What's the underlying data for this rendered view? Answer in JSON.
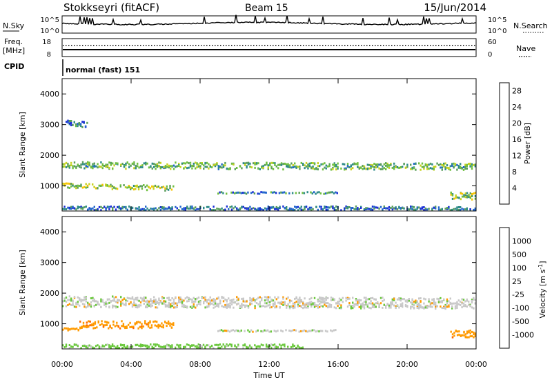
{
  "header": {
    "station": "Stokkseyri (fitACF)",
    "beam": "Beam 15",
    "date": "15/Jun/2014"
  },
  "status_panels": {
    "left_labels": {
      "nsky": "N.Sky",
      "freq": "Freq.",
      "freq_unit": "[MHz]",
      "cpid": "CPID"
    },
    "right_labels": {
      "nsearch": "N.Search",
      "nave": "Nave"
    },
    "nsky_ticks": [
      "10^5",
      "10^0"
    ],
    "nsearch_ticks": [
      "10^5",
      "10^0"
    ],
    "freq_ticks": [
      "18",
      "8"
    ],
    "nave_ticks": [
      "60",
      "0"
    ],
    "cpid_text": "normal (fast) 151"
  },
  "time_axis": {
    "label": "Time UT",
    "ticks": [
      "00:00",
      "04:00",
      "08:00",
      "12:00",
      "16:00",
      "20:00",
      "00:00"
    ]
  },
  "chart_data": [
    {
      "type": "heatmap",
      "name": "power",
      "ylabel": "Slant Range [km]",
      "xlabel": "",
      "yticks": [
        "1000",
        "2000",
        "3000",
        "4000"
      ],
      "ylim": [
        180,
        4500
      ],
      "xlim_hours": [
        0,
        24
      ],
      "colorbar": {
        "label": "Power [dB]",
        "ticks": [
          "4",
          "8",
          "12",
          "16",
          "20",
          "24",
          "28"
        ],
        "range": [
          0,
          30
        ],
        "colors": [
          "#1b2fd6",
          "#2266cc",
          "#2e8b88",
          "#5a9e5a",
          "#6fbf3f",
          "#c8d21e",
          "#f5c400",
          "#ff9a00",
          "#ff5a00",
          "#e01010"
        ]
      },
      "echo_bands": [
        {
          "start_h": 0.0,
          "end_h": 24.0,
          "start_km": 1700,
          "end_km": 1660,
          "spread_km": 110,
          "level": 10
        },
        {
          "start_h": 0.0,
          "end_h": 6.5,
          "start_km": 1050,
          "end_km": 950,
          "spread_km": 80,
          "level": 13
        },
        {
          "start_h": 0.2,
          "end_h": 1.5,
          "start_km": 3050,
          "end_km": 3050,
          "spread_km": 110,
          "level": 5
        },
        {
          "start_h": 9.0,
          "end_h": 16.0,
          "start_km": 800,
          "end_km": 800,
          "spread_km": 30,
          "level": 6
        },
        {
          "start_h": 22.5,
          "end_h": 24.0,
          "start_km": 700,
          "end_km": 700,
          "spread_km": 120,
          "level": 12
        },
        {
          "start_h": 0.0,
          "end_h": 24.0,
          "start_km": 300,
          "end_km": 300,
          "spread_km": 60,
          "level": 4
        }
      ]
    },
    {
      "type": "heatmap",
      "name": "velocity",
      "ylabel": "Slant Range [km]",
      "xlabel": "Time UT",
      "yticks": [
        "1000",
        "2000",
        "3000",
        "4000"
      ],
      "ylim": [
        180,
        4500
      ],
      "xlim_hours": [
        0,
        24
      ],
      "colorbar": {
        "label": "Velocity [m s^-1]",
        "ticks": [
          "1000",
          "500",
          "100",
          "25",
          "-25",
          "-100",
          "-500",
          "-1000"
        ],
        "colors": [
          "#1e3aa8",
          "#3070c8",
          "#2e8b57",
          "#6ac83c",
          "#c8c8c8",
          "#c8c8c8",
          "#ff9a00",
          "#ff6a00",
          "#e01010"
        ]
      },
      "echo_bands": [
        {
          "start_h": 0.0,
          "end_h": 24.0,
          "start_km": 1750,
          "end_km": 1700,
          "spread_km": 180,
          "velocity": 0
        },
        {
          "start_h": 1.0,
          "end_h": 6.5,
          "start_km": 1000,
          "end_km": 1000,
          "spread_km": 120,
          "velocity": -200
        },
        {
          "start_h": 0.0,
          "end_h": 1.0,
          "start_km": 850,
          "end_km": 850,
          "spread_km": 60,
          "velocity": -150
        },
        {
          "start_h": 9.0,
          "end_h": 16.0,
          "start_km": 800,
          "end_km": 800,
          "spread_km": 30,
          "velocity": 0
        },
        {
          "start_h": 22.5,
          "end_h": 24.0,
          "start_km": 700,
          "end_km": 700,
          "spread_km": 120,
          "velocity": -200
        },
        {
          "start_h": 0.0,
          "end_h": 14.0,
          "start_km": 300,
          "end_km": 300,
          "spread_km": 60,
          "velocity": 120
        }
      ]
    }
  ]
}
